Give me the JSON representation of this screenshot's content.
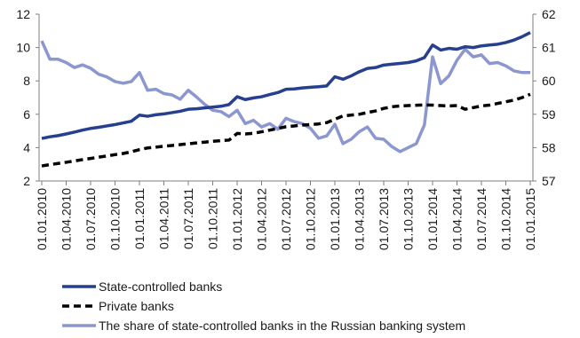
{
  "chart_data": {
    "type": "line",
    "title": "",
    "x_categories": [
      "01.01.2010",
      "01.02.2010",
      "01.03.2010",
      "01.04.2010",
      "01.05.2010",
      "01.06.2010",
      "01.07.2010",
      "01.08.2010",
      "01.09.2010",
      "01.10.2010",
      "01.11.2010",
      "01.12.2010",
      "01.01.2011",
      "01.02.2011",
      "01.03.2011",
      "01.04.2011",
      "01.05.2011",
      "01.06.2011",
      "01.07.2011",
      "01.08.2011",
      "01.09.2011",
      "01.10.2011",
      "01.11.2011",
      "01.12.2011",
      "01.01.2012",
      "01.02.2012",
      "01.03.2012",
      "01.04.2012",
      "01.05.2012",
      "01.06.2012",
      "01.07.2012",
      "01.08.2012",
      "01.09.2012",
      "01.10.2012",
      "01.11.2012",
      "01.12.2012",
      "01.01.2013",
      "01.02.2013",
      "01.03.2013",
      "01.04.2013",
      "01.05.2013",
      "01.06.2013",
      "01.07.2013",
      "01.08.2013",
      "01.09.2013",
      "01.10.2013",
      "01.11.2013",
      "01.12.2013",
      "01.01.2014",
      "01.02.2014",
      "01.03.2014",
      "01.04.2014",
      "01.05.2014",
      "01.06.2014",
      "01.07.2014",
      "01.08.2014",
      "01.09.2014",
      "01.10.2014",
      "01.11.2014",
      "01.12.2014",
      "01.01.2015"
    ],
    "x_tick_labels": [
      "01.01.2010",
      "01.04.2010",
      "01.07.2010",
      "01.10.2010",
      "01.01.2011",
      "01.04.2011",
      "01.07.2011",
      "01.10.2011",
      "01.01.2012",
      "01.04.2012",
      "01.07.2012",
      "01.10.2012",
      "01.01.2013",
      "01.04.2013",
      "01.07.2013",
      "01.10.2013",
      "01.01.2014",
      "01.04.2014",
      "01.07.2014",
      "01.10.2014",
      "01.01.2015"
    ],
    "y_left": {
      "min": 2,
      "max": 12,
      "ticks": [
        "2",
        "4",
        "6",
        "8",
        "10",
        "12"
      ]
    },
    "y_right": {
      "min": 57,
      "max": 62,
      "ticks": [
        "57",
        "58",
        "59",
        "60",
        "61",
        "62"
      ]
    },
    "grid": false,
    "legend_position": "bottom-left",
    "series": [
      {
        "name": "State-controlled banks",
        "axis": "left",
        "color": "#263f8f",
        "style": "solid",
        "values": [
          4.55,
          4.65,
          4.72,
          4.82,
          4.93,
          5.05,
          5.15,
          5.22,
          5.3,
          5.38,
          5.48,
          5.58,
          5.95,
          5.88,
          5.97,
          6.02,
          6.1,
          6.18,
          6.3,
          6.33,
          6.38,
          6.43,
          6.48,
          6.58,
          7.05,
          6.88,
          6.98,
          7.05,
          7.18,
          7.3,
          7.5,
          7.52,
          7.58,
          7.62,
          7.65,
          7.7,
          8.25,
          8.1,
          8.3,
          8.55,
          8.75,
          8.8,
          8.95,
          9.0,
          9.05,
          9.1,
          9.2,
          9.4,
          10.15,
          9.85,
          9.95,
          9.9,
          10.05,
          10.0,
          10.1,
          10.15,
          10.2,
          10.3,
          10.45,
          10.65,
          10.9
        ]
      },
      {
        "name": "Private banks",
        "axis": "left",
        "color": "#000000",
        "style": "dashed",
        "values": [
          2.9,
          2.98,
          3.05,
          3.12,
          3.2,
          3.28,
          3.35,
          3.43,
          3.5,
          3.58,
          3.65,
          3.75,
          3.88,
          3.98,
          4.03,
          4.08,
          4.13,
          4.18,
          4.23,
          4.28,
          4.33,
          4.38,
          4.42,
          4.45,
          4.85,
          4.82,
          4.86,
          4.95,
          5.05,
          5.15,
          5.25,
          5.3,
          5.35,
          5.38,
          5.42,
          5.5,
          5.7,
          5.9,
          5.95,
          6.0,
          6.1,
          6.2,
          6.35,
          6.45,
          6.5,
          6.52,
          6.54,
          6.56,
          6.55,
          6.52,
          6.5,
          6.52,
          6.3,
          6.4,
          6.5,
          6.55,
          6.65,
          6.75,
          6.85,
          7.0,
          7.2
        ]
      },
      {
        "name": "The share of state-controlled banks in the Russian banking system",
        "axis": "right",
        "color": "#8c96cf",
        "style": "solid",
        "values": [
          61.2,
          60.65,
          60.65,
          60.55,
          60.4,
          60.48,
          60.38,
          60.2,
          60.12,
          59.98,
          59.93,
          59.98,
          60.25,
          59.72,
          59.75,
          59.62,
          59.58,
          59.45,
          59.72,
          59.52,
          59.3,
          59.12,
          59.08,
          58.93,
          59.12,
          58.72,
          58.82,
          58.62,
          58.72,
          58.55,
          58.88,
          58.78,
          58.72,
          58.58,
          58.28,
          58.35,
          58.7,
          58.12,
          58.25,
          58.48,
          58.62,
          58.28,
          58.25,
          58.03,
          57.88,
          58.0,
          58.12,
          58.68,
          60.72,
          59.92,
          60.15,
          60.62,
          60.95,
          60.72,
          60.78,
          60.52,
          60.55,
          60.45,
          60.3,
          60.25,
          60.25
        ]
      }
    ]
  }
}
